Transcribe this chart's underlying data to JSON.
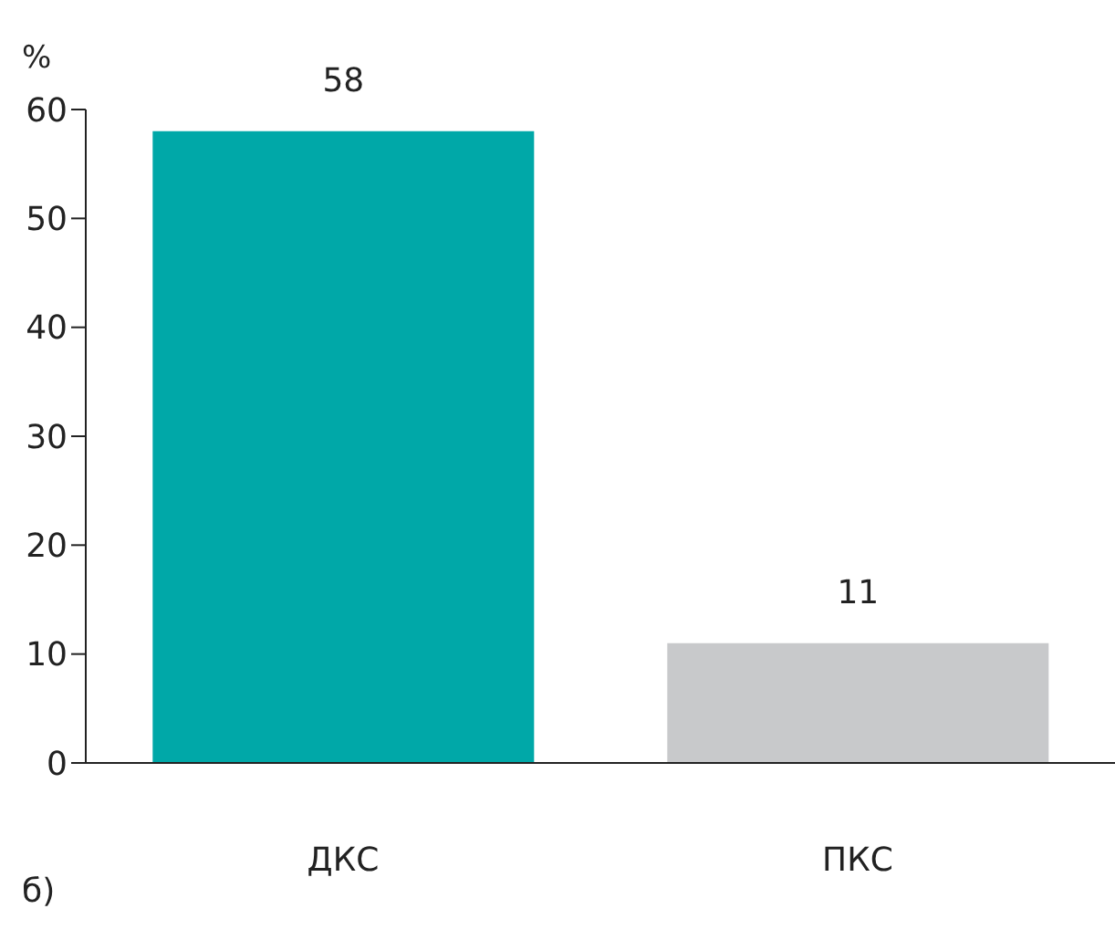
{
  "chart_data": {
    "type": "bar",
    "ylabel": "%",
    "categories": [
      "ДКС",
      "ПКС"
    ],
    "values": [
      58,
      11
    ],
    "colors": [
      "#00a8a8",
      "#c8c9cb"
    ],
    "ylim": [
      0,
      60
    ],
    "yticks": [
      0,
      10,
      20,
      30,
      40,
      50,
      60
    ],
    "data_labels": true,
    "grid": false,
    "annotations": [
      "б)"
    ]
  }
}
